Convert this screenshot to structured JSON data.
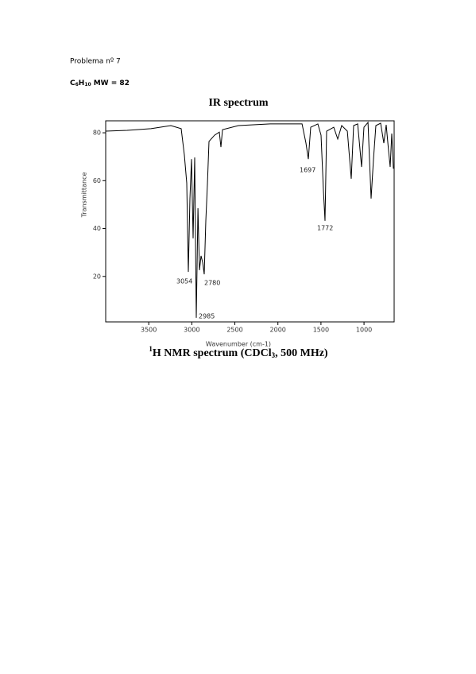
{
  "header": {
    "title": "Problema nº 7",
    "formula": {
      "c": "C",
      "c_count": "6",
      "h": "H",
      "h_count": "10",
      "mw": "MW = 82"
    }
  },
  "chart_data": {
    "type": "line",
    "title": "IR spectrum",
    "x_label": "Wavenumber (cm-1)",
    "y_label": "Transmittance",
    "x": [
      4000,
      3751,
      3474,
      3243,
      3123,
      3086,
      3059,
      3040,
      3022,
      3003,
      2985,
      2966,
      2948,
      2929,
      2911,
      2893,
      2874,
      2856,
      2837,
      2819,
      2800,
      2736,
      2680,
      2662,
      2643,
      2459,
      2090,
      1720,
      1674,
      1647,
      1619,
      1536,
      1499,
      1471,
      1453,
      1434,
      1351,
      1305,
      1259,
      1194,
      1148,
      1121,
      1074,
      1028,
      1001,
      954,
      918,
      890,
      862,
      807,
      770,
      742,
      715,
      696,
      678,
      659
    ],
    "values": [
      80.7,
      81,
      81.7,
      83,
      81.7,
      70.7,
      59,
      21.9,
      52.5,
      69,
      35.9,
      69.7,
      2.7,
      48.5,
      22.6,
      28.6,
      25.9,
      20.9,
      43.2,
      58.4,
      76.4,
      79,
      80.3,
      74,
      81.3,
      83,
      83.7,
      83.7,
      75.7,
      69,
      82.3,
      83.7,
      79,
      55.8,
      43.2,
      80.7,
      82.3,
      77.4,
      83,
      80.7,
      60.8,
      83,
      83.7,
      65.7,
      82.3,
      84.3,
      52.5,
      69,
      83,
      84,
      75.7,
      83.3,
      72.4,
      65.7,
      79.7,
      65
    ],
    "color": "#000000",
    "xlim": [
      4000,
      650
    ],
    "ylim": [
      1,
      85
    ],
    "xticks": [
      3500,
      3000,
      2500,
      2000,
      1500,
      1000
    ],
    "yticks": [
      20,
      40,
      60,
      80
    ],
    "annotations": [
      3054,
      2985,
      2780,
      1697,
      1772
    ]
  },
  "nmr_title": {
    "sup": "1",
    "text_a": "H NMR spectrum (CDCl",
    "sub": "3",
    "text_b": ", 500 MHz)"
  }
}
